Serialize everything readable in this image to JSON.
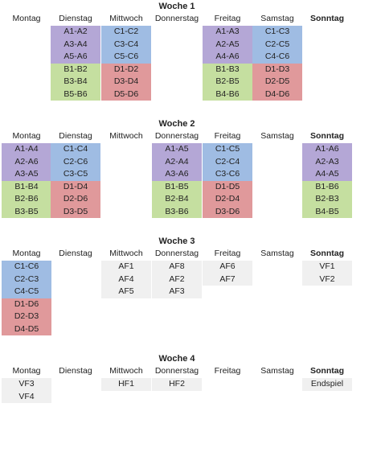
{
  "weeks": [
    {
      "title": "Woche 1",
      "days": [
        "Montag",
        "Dienstag",
        "Mittwoch",
        "Donnerstag",
        "Freitag",
        "Samstag",
        "Sonntag"
      ],
      "blocks": [
        {
          "col": 1,
          "row": 0,
          "color": "purple",
          "cells": [
            "A1-A2",
            "A3-A4",
            "A5-A6"
          ]
        },
        {
          "col": 2,
          "row": 0,
          "color": "blue",
          "cells": [
            "C1-C2",
            "C3-C4",
            "C5-C6"
          ]
        },
        {
          "col": 4,
          "row": 0,
          "color": "purple",
          "cells": [
            "A1-A3",
            "A2-A5",
            "A4-A6"
          ]
        },
        {
          "col": 5,
          "row": 0,
          "color": "blue",
          "cells": [
            "C1-C3",
            "C2-C5",
            "C4-C6"
          ]
        },
        {
          "col": 1,
          "row": 3,
          "color": "green",
          "cells": [
            "B1-B2",
            "B3-B4",
            "B5-B6"
          ]
        },
        {
          "col": 2,
          "row": 3,
          "color": "red",
          "cells": [
            "D1-D2",
            "D3-D4",
            "D5-D6"
          ]
        },
        {
          "col": 4,
          "row": 3,
          "color": "green",
          "cells": [
            "B1-B3",
            "B2-B5",
            "B4-B6"
          ]
        },
        {
          "col": 5,
          "row": 3,
          "color": "red",
          "cells": [
            "D1-D3",
            "D2-D5",
            "D4-D6"
          ]
        }
      ]
    },
    {
      "title": "Woche 2",
      "days": [
        "Montag",
        "Dienstag",
        "Mittwoch",
        "Donnerstag",
        "Freitag",
        "Samstag",
        "Sonntag"
      ],
      "blocks": [
        {
          "col": 0,
          "row": 0,
          "color": "purple",
          "cells": [
            "A1-A4",
            "A2-A6",
            "A3-A5"
          ]
        },
        {
          "col": 1,
          "row": 0,
          "color": "blue",
          "cells": [
            "C1-C4",
            "C2-C6",
            "C3-C5"
          ]
        },
        {
          "col": 3,
          "row": 0,
          "color": "purple",
          "cells": [
            "A1-A5",
            "A2-A4",
            "A3-A6"
          ]
        },
        {
          "col": 4,
          "row": 0,
          "color": "blue",
          "cells": [
            "C1-C5",
            "C2-C4",
            "C3-C6"
          ]
        },
        {
          "col": 6,
          "row": 0,
          "color": "purple",
          "cells": [
            "A1-A6",
            "A2-A3",
            "A4-A5"
          ]
        },
        {
          "col": 0,
          "row": 3,
          "color": "green",
          "cells": [
            "B1-B4",
            "B2-B6",
            "B3-B5"
          ]
        },
        {
          "col": 1,
          "row": 3,
          "color": "red",
          "cells": [
            "D1-D4",
            "D2-D6",
            "D3-D5"
          ]
        },
        {
          "col": 3,
          "row": 3,
          "color": "green",
          "cells": [
            "B1-B5",
            "B2-B4",
            "B3-B6"
          ]
        },
        {
          "col": 4,
          "row": 3,
          "color": "red",
          "cells": [
            "D1-D5",
            "D2-D4",
            "D3-D6"
          ]
        },
        {
          "col": 6,
          "row": 3,
          "color": "green",
          "cells": [
            "B1-B6",
            "B2-B3",
            "B4-B5"
          ]
        }
      ]
    },
    {
      "title": "Woche 3",
      "days": [
        "Montag",
        "Dienstag",
        "Mittwoch",
        "Donnerstag",
        "Freitag",
        "Samstag",
        "Sonntag"
      ],
      "blocks": [
        {
          "col": 0,
          "row": 0,
          "color": "blue",
          "cells": [
            "C1-C6",
            "C2-C3",
            "C4-C5"
          ]
        },
        {
          "col": 0,
          "row": 3,
          "color": "red",
          "cells": [
            "D1-D6",
            "D2-D3",
            "D4-D5"
          ]
        },
        {
          "col": 2,
          "row": 0,
          "color": "gray",
          "cells": [
            "AF1",
            "AF4",
            "AF5"
          ]
        },
        {
          "col": 3,
          "row": 0,
          "color": "gray",
          "cells": [
            "AF8",
            "AF2",
            "AF3"
          ]
        },
        {
          "col": 4,
          "row": 0,
          "color": "gray",
          "cells": [
            "AF6",
            "AF7"
          ]
        },
        {
          "col": 6,
          "row": 0,
          "color": "gray",
          "cells": [
            "VF1",
            "VF2"
          ]
        }
      ]
    },
    {
      "title": "Woche 4",
      "days": [
        "Montag",
        "Dienstag",
        "Mittwoch",
        "Donnerstag",
        "Freitag",
        "Samstag",
        "Sonntag"
      ],
      "blocks": [
        {
          "col": 0,
          "row": 0,
          "color": "gray",
          "cells": [
            "VF3",
            "VF4"
          ]
        },
        {
          "col": 2,
          "row": 0,
          "color": "gray",
          "cells": [
            "HF1"
          ]
        },
        {
          "col": 3,
          "row": 0,
          "color": "gray",
          "cells": [
            "HF2"
          ]
        },
        {
          "col": 6,
          "row": 0,
          "color": "gray",
          "cells": [
            "Endspiel"
          ]
        }
      ]
    }
  ],
  "colors": {
    "purple": "#b4a7d6",
    "blue": "#9fbce3",
    "green": "#c5dfa0",
    "red": "#e0999b",
    "gray": "#f0f0f0"
  }
}
